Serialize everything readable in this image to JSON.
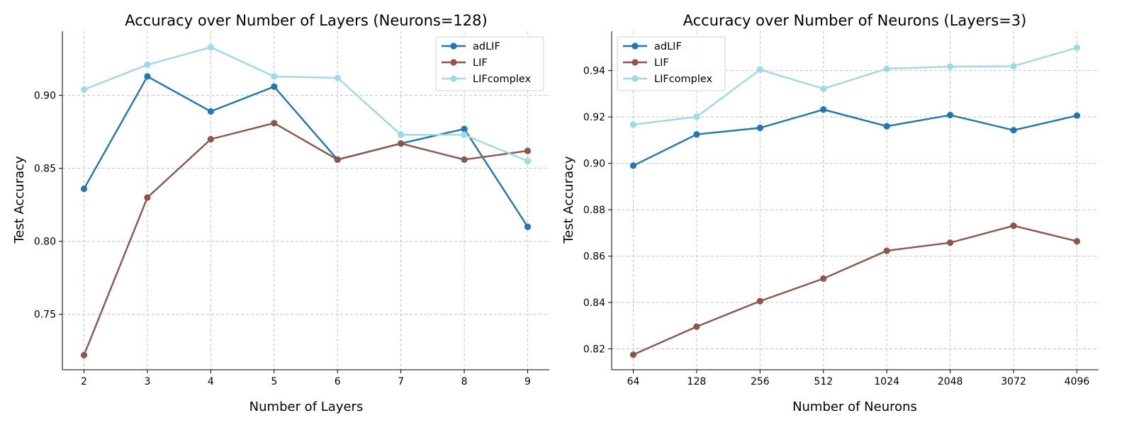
{
  "chart_data": [
    {
      "type": "line",
      "title": "Accuracy over Number of Layers (Neurons=128)",
      "xlabel": "Number of Layers",
      "ylabel": "Test Accuracy",
      "categories": [
        "2",
        "3",
        "4",
        "5",
        "6",
        "7",
        "8",
        "9"
      ],
      "yticks": [
        "0.75",
        "0.80",
        "0.85",
        "0.90"
      ],
      "ylim": [
        0.712,
        0.944
      ],
      "grid": true,
      "legend_position": "top-right",
      "series": [
        {
          "name": "adLIF",
          "color": "#1f77b4",
          "values": [
            0.836,
            0.913,
            0.889,
            0.906,
            0.856,
            0.867,
            0.877,
            0.81
          ]
        },
        {
          "name": "LIF",
          "color": "#8c564b",
          "values": [
            0.722,
            0.83,
            0.87,
            0.881,
            0.856,
            0.867,
            0.856,
            0.862
          ]
        },
        {
          "name": "LIFcomplex",
          "color": "#9edae5",
          "values": [
            0.904,
            0.921,
            0.933,
            0.913,
            0.912,
            0.873,
            0.873,
            0.855
          ]
        }
      ]
    },
    {
      "type": "line",
      "title": "Accuracy over Number of Neurons (Layers=3)",
      "xlabel": "Number of Neurons",
      "ylabel": "Test Accuracy",
      "categories": [
        "64",
        "128",
        "256",
        "512",
        "1024",
        "2048",
        "3072",
        "4096"
      ],
      "yticks": [
        "0.82",
        "0.84",
        "0.86",
        "0.88",
        "0.90",
        "0.92",
        "0.94"
      ],
      "ylim": [
        0.811,
        0.957
      ],
      "grid": true,
      "legend_position": "top-left",
      "series": [
        {
          "name": "adLIF",
          "color": "#1f77b4",
          "values": [
            0.899,
            0.9125,
            0.9153,
            0.9232,
            0.916,
            0.9208,
            0.9143,
            0.9206
          ]
        },
        {
          "name": "LIF",
          "color": "#8c564b",
          "values": [
            0.8175,
            0.8296,
            0.8406,
            0.8503,
            0.8623,
            0.8658,
            0.8731,
            0.8664
          ]
        },
        {
          "name": "LIFcomplex",
          "color": "#9edae5",
          "values": [
            0.9167,
            0.9201,
            0.9404,
            0.9322,
            0.9408,
            0.9417,
            0.9419,
            0.9499
          ]
        }
      ]
    }
  ]
}
